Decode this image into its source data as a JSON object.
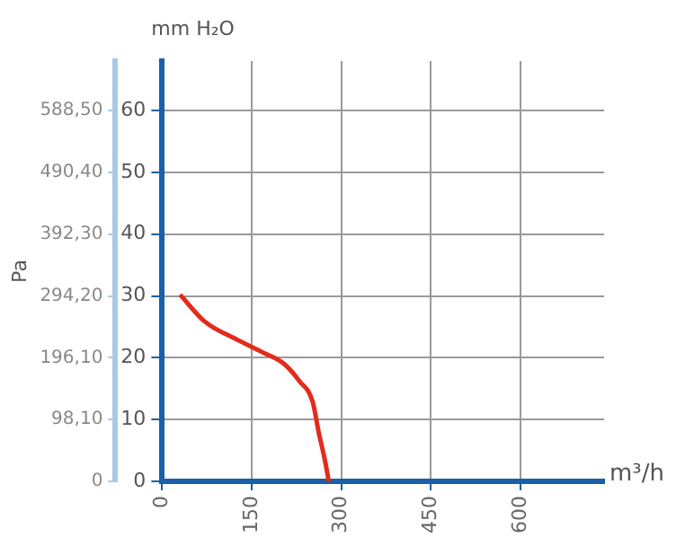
{
  "chart_data": {
    "type": "line",
    "ylabel": "mm H₂O",
    "y2label": "Pa",
    "xlabel": "m³/h",
    "x": [
      30,
      72,
      126,
      170,
      203,
      230,
      252,
      262,
      273,
      279
    ],
    "series": [
      {
        "color": "#e32b1c",
        "values": [
          30.2,
          25.8,
          22.9,
          20.8,
          19.1,
          16.2,
          12.9,
          8,
          3.2,
          0
        ]
      }
    ],
    "xlim": [
      0,
      740
    ],
    "xticks": [
      0,
      150,
      300,
      450,
      600
    ],
    "ylim": [
      0,
      68
    ],
    "yticks": [
      0,
      10,
      20,
      30,
      40,
      50,
      60
    ],
    "y2lim": [
      0,
      666.9
    ],
    "y2ticks": [
      {
        "value": 0,
        "label": "0"
      },
      {
        "value": 98.1,
        "label": "98,10"
      },
      {
        "value": 196.1,
        "label": "196,10"
      },
      {
        "value": 294.2,
        "label": "294,20"
      },
      {
        "value": 392.3,
        "label": "392,30"
      },
      {
        "value": 490.4,
        "label": "490,40"
      },
      {
        "value": 588.5,
        "label": "588,50"
      }
    ],
    "grid": true,
    "marker": "none",
    "line_style": "solid"
  }
}
